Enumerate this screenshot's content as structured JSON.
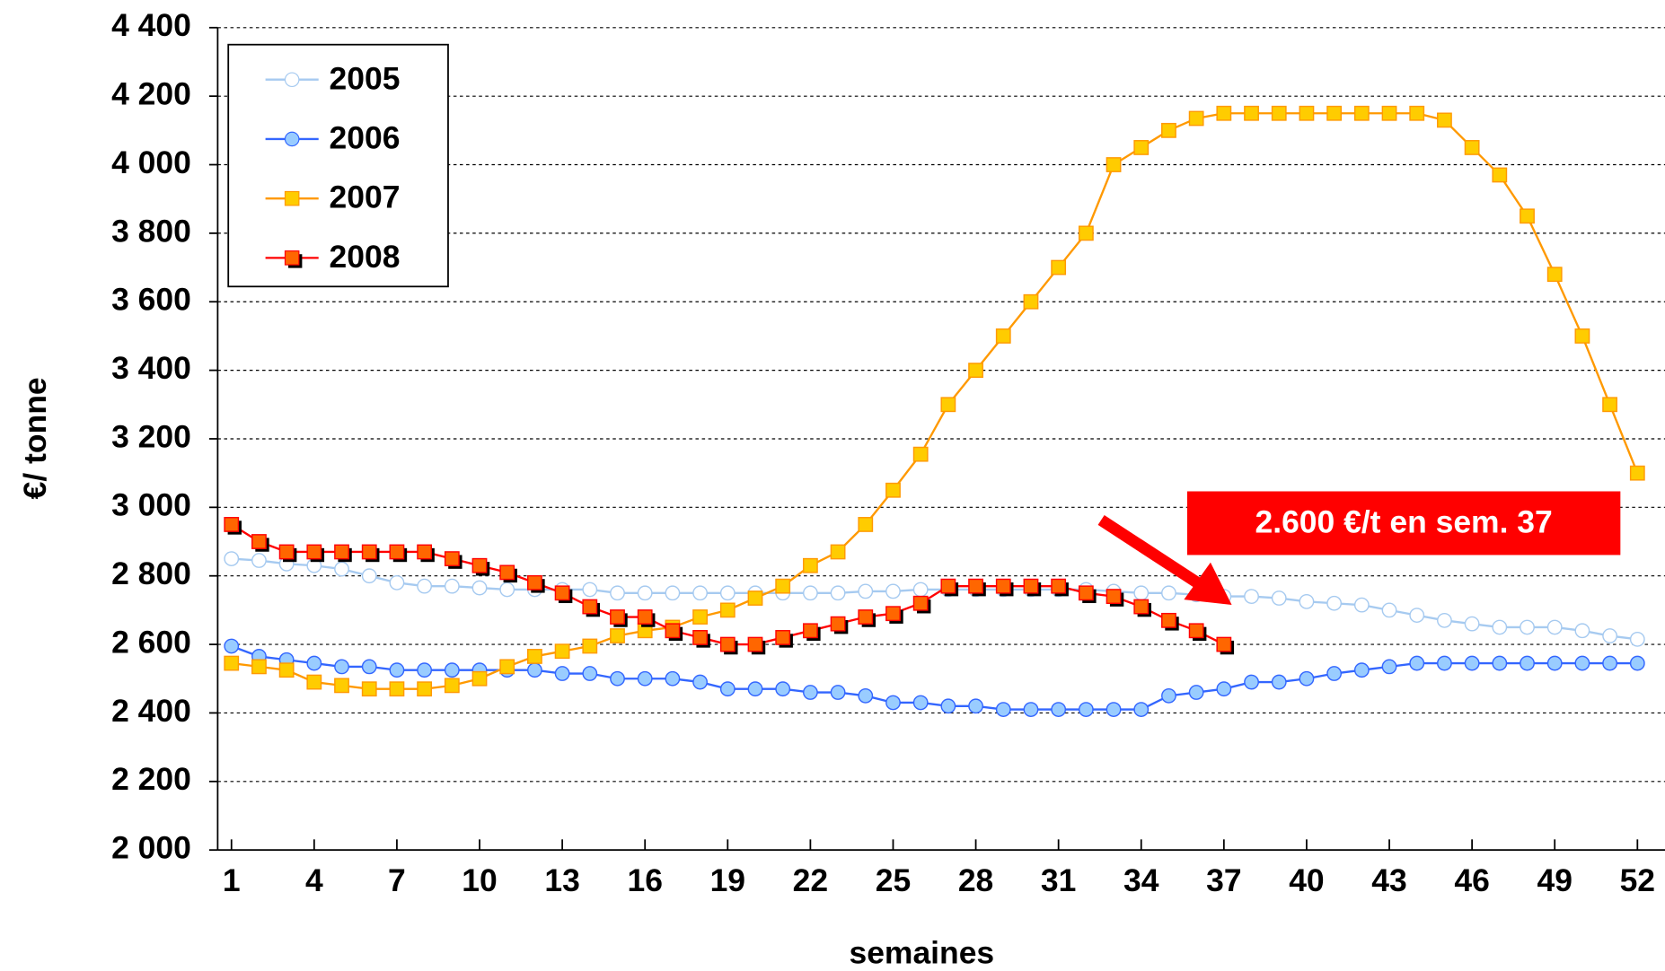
{
  "chart_data": {
    "type": "line",
    "y_label": "€/ tonne",
    "x_label": "semaines",
    "x": [
      1,
      2,
      3,
      4,
      5,
      6,
      7,
      8,
      9,
      10,
      11,
      12,
      13,
      14,
      15,
      16,
      17,
      18,
      19,
      20,
      21,
      22,
      23,
      24,
      25,
      26,
      27,
      28,
      29,
      30,
      31,
      32,
      33,
      34,
      35,
      36,
      37,
      38,
      39,
      40,
      41,
      42,
      43,
      44,
      45,
      46,
      47,
      48,
      49,
      50,
      51,
      52
    ],
    "xlim": [
      0.5,
      53
    ],
    "xticks": [
      1,
      4,
      7,
      10,
      13,
      16,
      19,
      22,
      25,
      28,
      31,
      34,
      37,
      40,
      43,
      46,
      49,
      52
    ],
    "ylim": [
      2000,
      4400
    ],
    "yticks": [
      {
        "value": 2000,
        "label": "2 000"
      },
      {
        "value": 2200,
        "label": "2 200"
      },
      {
        "value": 2400,
        "label": "2 400"
      },
      {
        "value": 2600,
        "label": "2 600"
      },
      {
        "value": 2800,
        "label": "2 800"
      },
      {
        "value": 3000,
        "label": "3 000"
      },
      {
        "value": 3200,
        "label": "3 200"
      },
      {
        "value": 3400,
        "label": "3 400"
      },
      {
        "value": 3600,
        "label": "3 600"
      },
      {
        "value": 3800,
        "label": "3 800"
      },
      {
        "value": 4000,
        "label": "4 000"
      },
      {
        "value": 4200,
        "label": "4 200"
      },
      {
        "value": 4400,
        "label": "4 400"
      }
    ],
    "grid": true,
    "legend": "upper left",
    "series": [
      {
        "name": "2005",
        "color": "#a6caf0",
        "marker_fill": "#ffffff",
        "marker": "circle",
        "values": [
          2850,
          2845,
          2835,
          2830,
          2820,
          2800,
          2780,
          2770,
          2770,
          2765,
          2760,
          2760,
          2760,
          2760,
          2750,
          2750,
          2750,
          2750,
          2750,
          2750,
          2750,
          2750,
          2750,
          2755,
          2755,
          2760,
          2760,
          2760,
          2760,
          2760,
          2760,
          2760,
          2755,
          2750,
          2750,
          2745,
          2740,
          2740,
          2735,
          2725,
          2720,
          2715,
          2700,
          2685,
          2670,
          2660,
          2650,
          2650,
          2650,
          2640,
          2625,
          2615
        ]
      },
      {
        "name": "2006",
        "color": "#3366ff",
        "marker_fill": "#99ccff",
        "marker": "circle",
        "values": [
          2595,
          2565,
          2555,
          2545,
          2535,
          2535,
          2525,
          2525,
          2525,
          2525,
          2525,
          2525,
          2515,
          2515,
          2500,
          2500,
          2500,
          2490,
          2470,
          2470,
          2470,
          2460,
          2460,
          2450,
          2430,
          2430,
          2420,
          2420,
          2410,
          2410,
          2410,
          2410,
          2410,
          2410,
          2450,
          2460,
          2470,
          2490,
          2490,
          2500,
          2515,
          2525,
          2535,
          2545,
          2545,
          2545,
          2545,
          2545,
          2545,
          2545,
          2545,
          2545
        ]
      },
      {
        "name": "2007",
        "color": "#ff9900",
        "marker_fill": "#ffcc00",
        "marker": "square",
        "values": [
          2545,
          2535,
          2525,
          2490,
          2480,
          2470,
          2470,
          2470,
          2480,
          2500,
          2535,
          2565,
          2580,
          2595,
          2625,
          2640,
          2650,
          2680,
          2700,
          2735,
          2770,
          2830,
          2870,
          2950,
          3050,
          3155,
          3300,
          3400,
          3500,
          3600,
          3700,
          3800,
          4000,
          4050,
          4100,
          4135,
          4150,
          4150,
          4150,
          4150,
          4150,
          4150,
          4150,
          4150,
          4130,
          4050,
          3970,
          3850,
          3680,
          3500,
          3300,
          3100
        ]
      },
      {
        "name": "2008",
        "color": "#ff0000",
        "marker_fill": "#ff6600",
        "marker": "square",
        "shadow": "#000000",
        "values": [
          2950,
          2900,
          2870,
          2870,
          2870,
          2870,
          2870,
          2870,
          2850,
          2830,
          2810,
          2780,
          2750,
          2710,
          2680,
          2680,
          2640,
          2620,
          2600,
          2600,
          2620,
          2640,
          2660,
          2680,
          2690,
          2720,
          2770,
          2770,
          2770,
          2770,
          2770,
          2750,
          2740,
          2710,
          2670,
          2640,
          2600,
          null,
          null,
          null,
          null,
          null,
          null,
          null,
          null,
          null,
          null,
          null,
          null,
          null,
          null,
          null
        ]
      }
    ],
    "annotation": {
      "text": "2.600 €/t en sem. 37",
      "color": "#ff0000"
    }
  }
}
